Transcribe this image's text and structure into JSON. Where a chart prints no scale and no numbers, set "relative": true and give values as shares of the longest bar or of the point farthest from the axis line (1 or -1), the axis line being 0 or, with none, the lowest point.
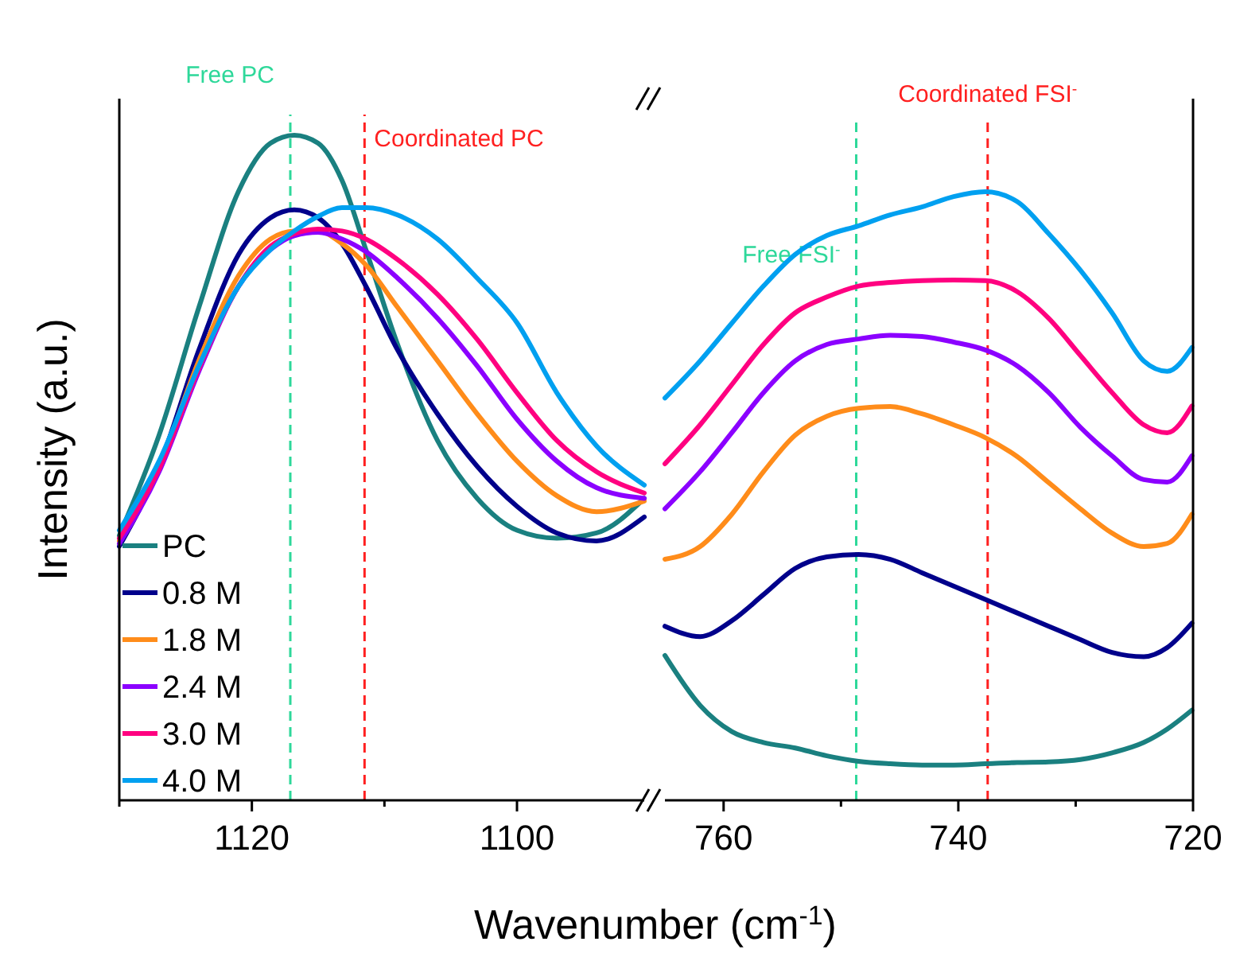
{
  "chart_data": [
    {
      "type": "line",
      "relative": true,
      "ylabel": "Intensity (a.u.)",
      "xlabel": "Wavenumber (cm$^{-1}$)",
      "xlim": [
        1130,
        1090.4
      ],
      "xticks": [
        {
          "value": 1130,
          "label": null
        },
        1120,
        {
          "value": 1110,
          "label": null
        },
        1100
      ],
      "tick_labels": "x",
      "legend": "bottom left",
      "line_style": "solid",
      "x": [
        1130,
        1127,
        1124,
        1121,
        1118.6,
        1116.8,
        1115,
        1113.2,
        1111.4,
        1109,
        1106,
        1103,
        1100,
        1097,
        1094,
        1090.4
      ],
      "series": [
        {
          "name": "PC",
          "color": "#1a8080",
          "values": [
            0.398,
            0.549,
            0.741,
            0.916,
            0.988,
            1.0,
            0.988,
            0.932,
            0.828,
            0.685,
            0.541,
            0.454,
            0.406,
            0.394,
            0.402,
            0.454
          ]
        },
        {
          "name": "0.8 M",
          "color": "#00008b",
          "values": [
            0.382,
            0.502,
            0.677,
            0.821,
            0.876,
            0.888,
            0.876,
            0.837,
            0.773,
            0.677,
            0.581,
            0.502,
            0.442,
            0.402,
            0.39,
            0.426
          ]
        },
        {
          "name": "1.8 M",
          "color": "#ff8c1a",
          "values": [
            0.39,
            0.502,
            0.661,
            0.789,
            0.844,
            0.856,
            0.856,
            0.837,
            0.805,
            0.741,
            0.661,
            0.581,
            0.51,
            0.458,
            0.434,
            0.45
          ]
        },
        {
          "name": "2.4 M",
          "color": "#8b00ff",
          "values": [
            0.386,
            0.494,
            0.645,
            0.773,
            0.828,
            0.849,
            0.854,
            0.844,
            0.825,
            0.785,
            0.725,
            0.653,
            0.573,
            0.51,
            0.47,
            0.454
          ]
        },
        {
          "name": "3.0 M",
          "color": "#ff0080",
          "values": [
            0.394,
            0.498,
            0.649,
            0.773,
            0.833,
            0.852,
            0.859,
            0.856,
            0.844,
            0.813,
            0.761,
            0.693,
            0.613,
            0.541,
            0.494,
            0.462
          ]
        },
        {
          "name": "4.0 M",
          "color": "#00a0f0",
          "values": [
            0.406,
            0.51,
            0.653,
            0.773,
            0.828,
            0.856,
            0.878,
            0.891,
            0.891,
            0.88,
            0.844,
            0.785,
            0.718,
            0.613,
            0.533,
            0.474
          ]
        }
      ],
      "ref_lines": [
        {
          "axis": "x",
          "value": 1117.1,
          "label": "Free PC",
          "color": "#2ed89a",
          "line_style": "dashed"
        },
        {
          "axis": "x",
          "value": 1111.5,
          "label": "Coordinated PC",
          "color": "#ff2020",
          "line_style": "dashed"
        }
      ]
    },
    {
      "type": "line",
      "relative": true,
      "xlim": [
        765,
        720
      ],
      "xticks": [
        760,
        {
          "value": 750,
          "label": null
        },
        740,
        {
          "value": 730,
          "label": null
        },
        720
      ],
      "tick_labels": "x",
      "line_style": "solid",
      "x": [
        765,
        762,
        759.3,
        756.6,
        753.9,
        751.2,
        748.5,
        745.8,
        743.1,
        740.4,
        737.7,
        735,
        732.3,
        729.6,
        726.9,
        724.2,
        722.2,
        720.1
      ],
      "series": [
        {
          "color": "#1a8080",
          "values": [
            0.238,
            0.156,
            0.113,
            0.095,
            0.086,
            0.073,
            0.064,
            0.06,
            0.058,
            0.058,
            0.06,
            0.062,
            0.063,
            0.067,
            0.078,
            0.095,
            0.117,
            0.148
          ]
        },
        {
          "color": "#00008b",
          "values": [
            0.286,
            0.269,
            0.295,
            0.338,
            0.381,
            0.4,
            0.404,
            0.396,
            0.374,
            0.352,
            0.33,
            0.308,
            0.286,
            0.264,
            0.243,
            0.236,
            0.251,
            0.291
          ]
        },
        {
          "color": "#ff8c1a",
          "values": [
            0.396,
            0.417,
            0.47,
            0.54,
            0.6,
            0.631,
            0.644,
            0.647,
            0.635,
            0.617,
            0.596,
            0.565,
            0.522,
            0.479,
            0.439,
            0.417,
            0.422,
            0.47
          ]
        },
        {
          "color": "#8b00ff",
          "values": [
            0.479,
            0.54,
            0.604,
            0.67,
            0.722,
            0.749,
            0.758,
            0.764,
            0.762,
            0.753,
            0.74,
            0.714,
            0.67,
            0.613,
            0.566,
            0.527,
            0.523,
            0.566
          ]
        },
        {
          "color": "#ff0080",
          "values": [
            0.553,
            0.617,
            0.683,
            0.749,
            0.801,
            0.827,
            0.845,
            0.851,
            0.854,
            0.855,
            0.854,
            0.836,
            0.792,
            0.731,
            0.67,
            0.617,
            0.604,
            0.648
          ]
        },
        {
          "color": "#00a0f0",
          "values": [
            0.661,
            0.722,
            0.784,
            0.845,
            0.897,
            0.928,
            0.944,
            0.962,
            0.975,
            0.992,
            1.0,
            0.984,
            0.931,
            0.871,
            0.801,
            0.722,
            0.705,
            0.744
          ]
        }
      ],
      "ref_lines": [
        {
          "axis": "x",
          "value": 748.7,
          "label": "Free FSI$^{-}$",
          "color": "#2ed89a",
          "line_style": "dashed"
        },
        {
          "axis": "x",
          "value": 737.5,
          "label": "Coordinated FSI$^{-}$",
          "color": "#ff2020",
          "line_style": "dashed"
        }
      ]
    }
  ]
}
